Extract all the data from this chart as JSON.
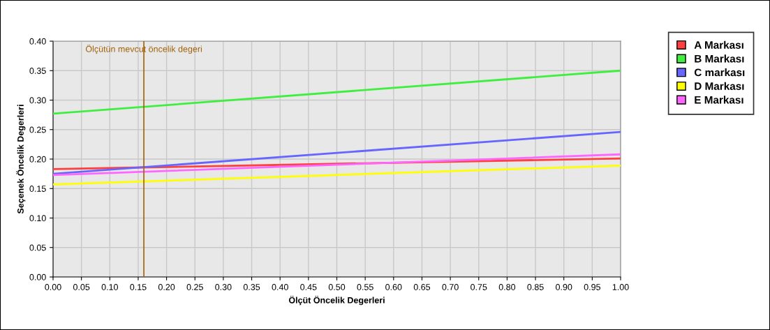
{
  "chart_data": {
    "type": "line",
    "xlabel": "Ölçüt Öncelik Degerleri",
    "ylabel": "Seçenek Öncelik Degerleri",
    "x": [
      0,
      1
    ],
    "series": [
      {
        "name": "A Markası",
        "color": "#ff4040",
        "values": [
          0.183,
          0.201
        ]
      },
      {
        "name": "B Markası",
        "color": "#40ee40",
        "values": [
          0.277,
          0.35
        ]
      },
      {
        "name": "C markası",
        "color": "#6666ff",
        "values": [
          0.175,
          0.246
        ]
      },
      {
        "name": "D Markası",
        "color": "#ffff00",
        "values": [
          0.157,
          0.189
        ]
      },
      {
        "name": "E Markası",
        "color": "#ff66ff",
        "values": [
          0.173,
          0.208
        ]
      }
    ],
    "xlim": [
      0,
      1
    ],
    "ylim": [
      0,
      0.4
    ],
    "xticks": [
      {
        "value": 0,
        "label": "0.00"
      },
      {
        "value": 0.05,
        "label": "0.05"
      },
      {
        "value": 0.1,
        "label": "0.10"
      },
      {
        "value": 0.15,
        "label": "0.15"
      },
      {
        "value": 0.2,
        "label": "0.20"
      },
      {
        "value": 0.25,
        "label": "0.25"
      },
      {
        "value": 0.3,
        "label": "0.30"
      },
      {
        "value": 0.35,
        "label": "0.35"
      },
      {
        "value": 0.4,
        "label": "0.40"
      },
      {
        "value": 0.45,
        "label": "0.45"
      },
      {
        "value": 0.5,
        "label": "0.50"
      },
      {
        "value": 0.55,
        "label": "0.55"
      },
      {
        "value": 0.6,
        "label": "0.60"
      },
      {
        "value": 0.65,
        "label": "0.65"
      },
      {
        "value": 0.7,
        "label": "0.70"
      },
      {
        "value": 0.75,
        "label": "0.75"
      },
      {
        "value": 0.8,
        "label": "0.80"
      },
      {
        "value": 0.85,
        "label": "0.85"
      },
      {
        "value": 0.9,
        "label": "0.90"
      },
      {
        "value": 0.95,
        "label": "0.95"
      },
      {
        "value": 1,
        "label": "1.00"
      }
    ],
    "yticks": [
      {
        "value": 0,
        "label": "0.00"
      },
      {
        "value": 0.05,
        "label": "0.05"
      },
      {
        "value": 0.1,
        "label": "0.10"
      },
      {
        "value": 0.15,
        "label": "0.15"
      },
      {
        "value": 0.2,
        "label": "0.20"
      },
      {
        "value": 0.25,
        "label": "0.25"
      },
      {
        "value": 0.3,
        "label": "0.30"
      },
      {
        "value": 0.35,
        "label": "0.35"
      },
      {
        "value": 0.4,
        "label": "0.40"
      }
    ],
    "ref_lines": [
      {
        "axis": "x",
        "value": 0.16,
        "label": "Ölçütün mevcut öncelik degeri",
        "color": "#a0620a"
      }
    ],
    "grid": true,
    "legend": "right",
    "marker": "none",
    "line_style": "solid"
  }
}
